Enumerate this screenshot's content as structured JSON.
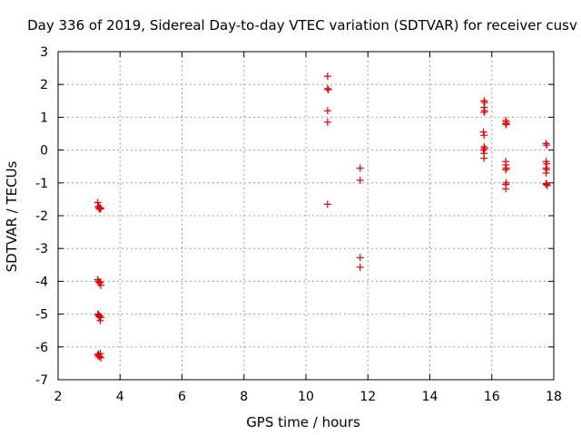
{
  "chart_data": {
    "type": "scatter",
    "title": "Day 336 of 2019, Sidereal Day-to-day VTEC variation (SDTVAR) for receiver cusv",
    "xlabel": "GPS time / hours",
    "ylabel": "SDTVAR / TECUs",
    "xlim": [
      2,
      18
    ],
    "ylim": [
      -7,
      3
    ],
    "xticks": [
      2,
      4,
      6,
      8,
      10,
      12,
      14,
      16,
      18
    ],
    "yticks": [
      -7,
      -6,
      -5,
      -4,
      -3,
      -2,
      -1,
      0,
      1,
      2,
      3
    ],
    "grid": true,
    "marker": "+",
    "color": "#e00000",
    "series": [
      {
        "name": "SDTVAR",
        "points": [
          [
            3.28,
            -1.6
          ],
          [
            3.3,
            -1.72
          ],
          [
            3.32,
            -1.76
          ],
          [
            3.34,
            -1.8
          ],
          [
            3.36,
            -1.76
          ],
          [
            3.38,
            -1.78
          ],
          [
            3.28,
            -3.95
          ],
          [
            3.3,
            -4.0
          ],
          [
            3.34,
            -4.05
          ],
          [
            3.36,
            -4.02
          ],
          [
            3.38,
            -4.12
          ],
          [
            3.28,
            -5.02
          ],
          [
            3.3,
            -5.0
          ],
          [
            3.32,
            -5.08
          ],
          [
            3.34,
            -5.05
          ],
          [
            3.36,
            -5.2
          ],
          [
            3.38,
            -5.1
          ],
          [
            3.28,
            -6.25
          ],
          [
            3.3,
            -6.22
          ],
          [
            3.32,
            -6.3
          ],
          [
            3.34,
            -6.28
          ],
          [
            3.36,
            -6.2
          ],
          [
            3.38,
            -6.33
          ],
          [
            10.7,
            2.25
          ],
          [
            10.7,
            1.87
          ],
          [
            10.72,
            1.84
          ],
          [
            10.7,
            1.2
          ],
          [
            10.7,
            0.85
          ],
          [
            10.7,
            -1.65
          ],
          [
            11.75,
            -0.55
          ],
          [
            11.75,
            -0.92
          ],
          [
            11.75,
            -3.28
          ],
          [
            11.75,
            -3.57
          ],
          [
            15.75,
            1.5
          ],
          [
            15.77,
            1.45
          ],
          [
            15.75,
            1.3
          ],
          [
            15.77,
            1.2
          ],
          [
            15.75,
            1.15
          ],
          [
            15.73,
            0.55
          ],
          [
            15.75,
            0.45
          ],
          [
            15.75,
            0.1
          ],
          [
            15.77,
            0.05
          ],
          [
            15.73,
            0.0
          ],
          [
            15.75,
            -0.1
          ],
          [
            15.75,
            -0.25
          ],
          [
            16.45,
            0.9
          ],
          [
            16.47,
            0.85
          ],
          [
            16.45,
            0.8
          ],
          [
            16.47,
            0.78
          ],
          [
            16.45,
            -0.35
          ],
          [
            16.45,
            -0.45
          ],
          [
            16.47,
            -0.55
          ],
          [
            16.45,
            -0.6
          ],
          [
            16.45,
            -1.05
          ],
          [
            16.47,
            -1.0
          ],
          [
            16.45,
            -1.18
          ],
          [
            17.75,
            0.2
          ],
          [
            17.77,
            0.15
          ],
          [
            17.75,
            -0.35
          ],
          [
            17.77,
            -0.42
          ],
          [
            17.75,
            -0.55
          ],
          [
            17.77,
            -0.6
          ],
          [
            17.75,
            -0.7
          ],
          [
            17.75,
            -1.02
          ],
          [
            17.77,
            -1.05
          ],
          [
            17.79,
            -1.08
          ]
        ]
      }
    ]
  }
}
